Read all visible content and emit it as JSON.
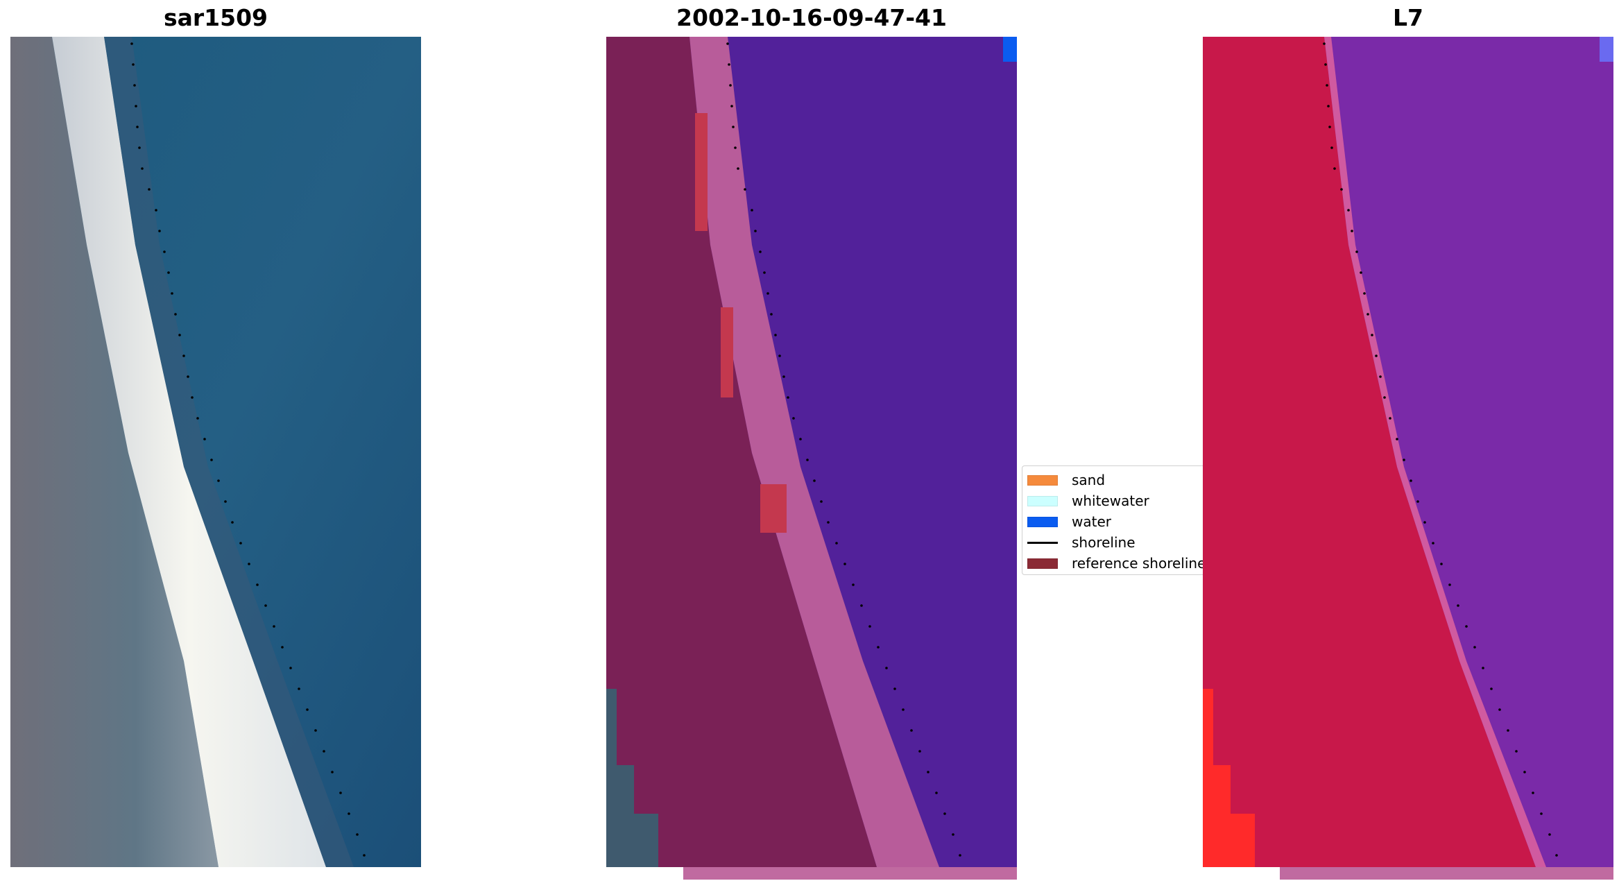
{
  "panels": [
    {
      "title": "sar1509"
    },
    {
      "title": "2002-10-16-09-47-41"
    },
    {
      "title": "L7"
    }
  ],
  "legend": {
    "items": [
      {
        "label": "sand",
        "color": "#f58a3c"
      },
      {
        "label": "whitewater",
        "color": "#ccffff"
      },
      {
        "label": "water",
        "color": "#0a5cf0"
      },
      {
        "label": "shoreline",
        "color": "#000000"
      },
      {
        "label": "reference shoreline",
        "color": "#8b2a35"
      }
    ]
  },
  "colors": {
    "rgb_water": "#1f5a82",
    "rgb_sand": "#eef0f0",
    "rgb_land": "#6b7a84",
    "class_water": "#52219a",
    "class_beach": "#b85c9a",
    "class_land": "#7a2156",
    "ndwi_water": "#7a2aa8",
    "ndwi_land": "#c8184a",
    "ndwi_bright": "#ff2a2a"
  }
}
